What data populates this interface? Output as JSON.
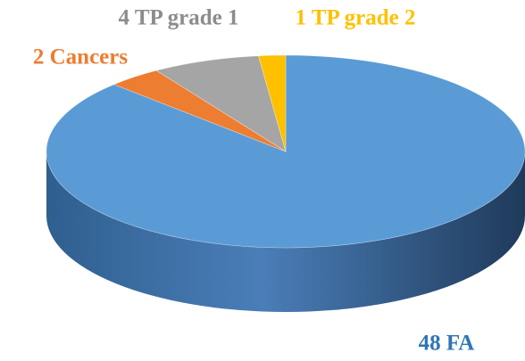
{
  "chart_data": {
    "type": "pie3d",
    "values": [
      48,
      2,
      4,
      1
    ],
    "value_labels": [
      "48 FA",
      "2 Cancers",
      "4 TP grade 1",
      "1 TP grade 2"
    ],
    "colors": [
      "#5b9bd5",
      "#ed7d31",
      "#a5a5a5",
      "#ffc000"
    ],
    "label_colors": [
      "#2e75b6",
      "#ed7d31",
      "#8c8c8c",
      "#ffc000"
    ]
  }
}
